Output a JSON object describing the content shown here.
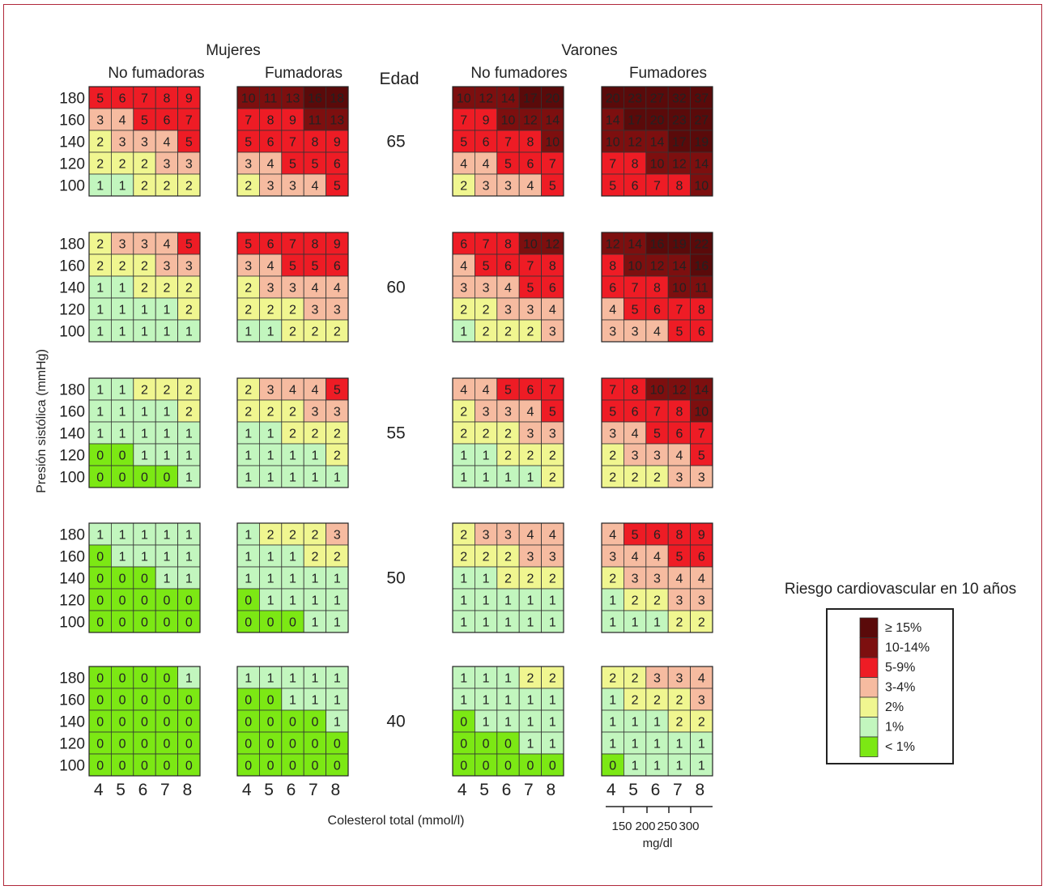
{
  "chart_data": {
    "type": "heatmap",
    "title": "",
    "legend_title": "Riesgo cardiovascular en 10 años",
    "ylabel": "Presión sistólica  (mmHg)",
    "xlabel": "Colesterol total (mmol/l)",
    "group_labels": {
      "women": "Mujeres",
      "men": "Varones"
    },
    "age_label": "Edad",
    "panels": [
      {
        "group": "women",
        "label": "No fumadoras"
      },
      {
        "group": "women",
        "label": "Fumadoras"
      },
      {
        "group": "men",
        "label": "No fumadores"
      },
      {
        "group": "men",
        "label": "Fumadores"
      }
    ],
    "x_ticks": [
      "4",
      "5",
      "6",
      "7",
      "8"
    ],
    "y_ticks": [
      "180",
      "160",
      "140",
      "120",
      "100"
    ],
    "ages": [
      "65",
      "60",
      "55",
      "50",
      "40"
    ],
    "values": [
      [
        [
          [
            5,
            6,
            7,
            8,
            9
          ],
          [
            3,
            4,
            5,
            6,
            7
          ],
          [
            2,
            3,
            3,
            4,
            5
          ],
          [
            2,
            2,
            2,
            3,
            3
          ],
          [
            1,
            1,
            2,
            2,
            2
          ]
        ],
        [
          [
            10,
            11,
            13,
            16,
            18
          ],
          [
            7,
            8,
            9,
            11,
            13
          ],
          [
            5,
            6,
            7,
            8,
            9
          ],
          [
            3,
            4,
            5,
            5,
            6
          ],
          [
            2,
            3,
            3,
            4,
            5
          ]
        ],
        [
          [
            10,
            12,
            14,
            17,
            20
          ],
          [
            7,
            9,
            10,
            12,
            14
          ],
          [
            5,
            6,
            7,
            8,
            10
          ],
          [
            4,
            4,
            5,
            6,
            7
          ],
          [
            2,
            3,
            3,
            4,
            5
          ]
        ],
        [
          [
            20,
            23,
            27,
            32,
            37
          ],
          [
            14,
            17,
            20,
            23,
            27
          ],
          [
            10,
            12,
            14,
            17,
            19
          ],
          [
            7,
            8,
            10,
            12,
            14
          ],
          [
            5,
            6,
            7,
            8,
            10
          ]
        ]
      ],
      [
        [
          [
            2,
            3,
            3,
            4,
            5
          ],
          [
            2,
            2,
            2,
            3,
            3
          ],
          [
            1,
            1,
            2,
            2,
            2
          ],
          [
            1,
            1,
            1,
            1,
            2
          ],
          [
            1,
            1,
            1,
            1,
            1
          ]
        ],
        [
          [
            5,
            6,
            7,
            8,
            9
          ],
          [
            3,
            4,
            5,
            5,
            6
          ],
          [
            2,
            3,
            3,
            4,
            4
          ],
          [
            2,
            2,
            2,
            3,
            3
          ],
          [
            1,
            1,
            2,
            2,
            2
          ]
        ],
        [
          [
            6,
            7,
            8,
            10,
            12
          ],
          [
            4,
            5,
            6,
            7,
            8
          ],
          [
            3,
            3,
            4,
            5,
            6
          ],
          [
            2,
            2,
            3,
            3,
            4
          ],
          [
            1,
            2,
            2,
            2,
            3
          ]
        ],
        [
          [
            12,
            14,
            16,
            19,
            22
          ],
          [
            8,
            10,
            12,
            14,
            16
          ],
          [
            6,
            7,
            8,
            10,
            11
          ],
          [
            4,
            5,
            6,
            7,
            8
          ],
          [
            3,
            3,
            4,
            5,
            6
          ]
        ]
      ],
      [
        [
          [
            1,
            1,
            2,
            2,
            2
          ],
          [
            1,
            1,
            1,
            1,
            2
          ],
          [
            1,
            1,
            1,
            1,
            1
          ],
          [
            0,
            0,
            1,
            1,
            1
          ],
          [
            0,
            0,
            0,
            0,
            1
          ]
        ],
        [
          [
            2,
            3,
            4,
            4,
            5
          ],
          [
            2,
            2,
            2,
            3,
            3
          ],
          [
            1,
            1,
            2,
            2,
            2
          ],
          [
            1,
            1,
            1,
            1,
            2
          ],
          [
            1,
            1,
            1,
            1,
            1
          ]
        ],
        [
          [
            4,
            4,
            5,
            6,
            7
          ],
          [
            2,
            3,
            3,
            4,
            5
          ],
          [
            2,
            2,
            2,
            3,
            3
          ],
          [
            1,
            1,
            2,
            2,
            2
          ],
          [
            1,
            1,
            1,
            1,
            2
          ]
        ],
        [
          [
            7,
            8,
            10,
            12,
            14
          ],
          [
            5,
            6,
            7,
            8,
            10
          ],
          [
            3,
            4,
            5,
            6,
            7
          ],
          [
            2,
            3,
            3,
            4,
            5
          ],
          [
            2,
            2,
            2,
            3,
            3
          ]
        ]
      ],
      [
        [
          [
            1,
            1,
            1,
            1,
            1
          ],
          [
            0,
            1,
            1,
            1,
            1
          ],
          [
            0,
            0,
            0,
            1,
            1
          ],
          [
            0,
            0,
            0,
            0,
            0
          ],
          [
            0,
            0,
            0,
            0,
            0
          ]
        ],
        [
          [
            1,
            2,
            2,
            2,
            3
          ],
          [
            1,
            1,
            1,
            2,
            2
          ],
          [
            1,
            1,
            1,
            1,
            1
          ],
          [
            0,
            1,
            1,
            1,
            1
          ],
          [
            0,
            0,
            0,
            1,
            1
          ]
        ],
        [
          [
            2,
            3,
            3,
            4,
            4
          ],
          [
            2,
            2,
            2,
            3,
            3
          ],
          [
            1,
            1,
            2,
            2,
            2
          ],
          [
            1,
            1,
            1,
            1,
            1
          ],
          [
            1,
            1,
            1,
            1,
            1
          ]
        ],
        [
          [
            4,
            5,
            6,
            8,
            9
          ],
          [
            3,
            4,
            4,
            5,
            6
          ],
          [
            2,
            3,
            3,
            4,
            4
          ],
          [
            1,
            2,
            2,
            3,
            3
          ],
          [
            1,
            1,
            1,
            2,
            2
          ]
        ]
      ],
      [
        [
          [
            0,
            0,
            0,
            0,
            1
          ],
          [
            0,
            0,
            0,
            0,
            0
          ],
          [
            0,
            0,
            0,
            0,
            0
          ],
          [
            0,
            0,
            0,
            0,
            0
          ],
          [
            0,
            0,
            0,
            0,
            0
          ]
        ],
        [
          [
            1,
            1,
            1,
            1,
            1
          ],
          [
            0,
            0,
            1,
            1,
            1
          ],
          [
            0,
            0,
            0,
            0,
            1
          ],
          [
            0,
            0,
            0,
            0,
            0
          ],
          [
            0,
            0,
            0,
            0,
            0
          ]
        ],
        [
          [
            1,
            1,
            1,
            2,
            2
          ],
          [
            1,
            1,
            1,
            1,
            1
          ],
          [
            0,
            1,
            1,
            1,
            1
          ],
          [
            0,
            0,
            0,
            1,
            1
          ],
          [
            0,
            0,
            0,
            0,
            0
          ]
        ],
        [
          [
            2,
            2,
            3,
            3,
            4
          ],
          [
            1,
            2,
            2,
            2,
            3
          ],
          [
            1,
            1,
            1,
            2,
            2
          ],
          [
            1,
            1,
            1,
            1,
            1
          ],
          [
            0,
            1,
            1,
            1,
            1
          ]
        ]
      ]
    ],
    "risk_categories": [
      {
        "label": "≥ 15%",
        "min": 15,
        "color": "#5a0a0a"
      },
      {
        "label": "10-14%",
        "min": 10,
        "color": "#7d0f0f"
      },
      {
        "label": "5-9%",
        "min": 5,
        "color": "#ee1c25"
      },
      {
        "label": "3-4%",
        "min": 3,
        "color": "#f6bba0"
      },
      {
        "label": "2%",
        "min": 2,
        "color": "#f0f690"
      },
      {
        "label": "1%",
        "min": 1,
        "color": "#c2f6be"
      },
      {
        "label": "< 1%",
        "min": 0,
        "color": "#7ce814"
      }
    ],
    "mgdl_ticks": [
      "150",
      "200",
      "250",
      "300"
    ],
    "mgdl_unit": "mg/dl"
  }
}
